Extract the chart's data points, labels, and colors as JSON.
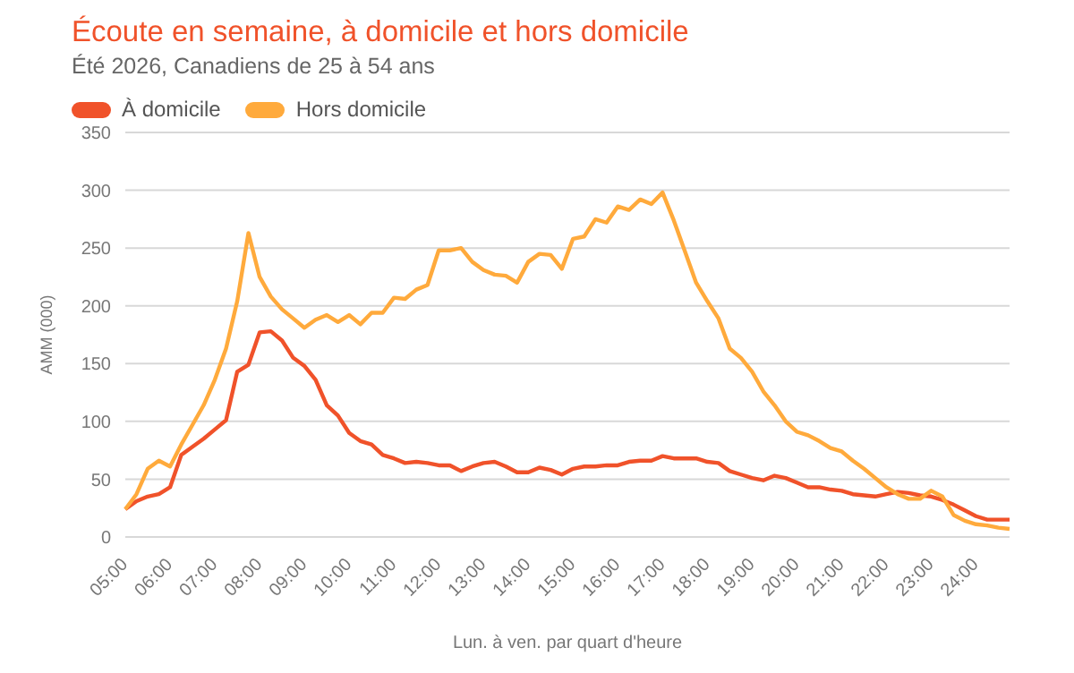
{
  "chart_data": {
    "type": "line",
    "title": "Écoute en semaine, à domicile et hors domicile",
    "subtitle": "Été 2026, Canadiens de 25 à 54 ans",
    "xlabel": "Lun. à ven. par quart d'heure",
    "ylabel": "AMM (000)",
    "categories": [
      "05:00",
      null,
      null,
      null,
      "06:00",
      null,
      null,
      null,
      "07:00",
      null,
      null,
      null,
      "08:00",
      null,
      null,
      null,
      "09:00",
      null,
      null,
      null,
      "10:00",
      null,
      null,
      null,
      "11:00",
      null,
      null,
      null,
      "12:00",
      null,
      null,
      null,
      "13:00",
      null,
      null,
      null,
      "14:00",
      null,
      null,
      null,
      "15:00",
      null,
      null,
      null,
      "16:00",
      null,
      null,
      null,
      "17:00",
      null,
      null,
      null,
      "18:00",
      null,
      null,
      null,
      "19:00",
      null,
      null,
      null,
      "20:00",
      null,
      null,
      null,
      "21:00",
      null,
      null,
      null,
      "22:00",
      null,
      null,
      null,
      "23:00",
      null,
      null,
      null,
      "24:00",
      null,
      null,
      null
    ],
    "series": [
      {
        "name": "À domicile",
        "color": "#f0522a",
        "values": [
          24,
          31,
          35,
          37,
          43,
          71,
          78,
          85,
          93,
          101,
          143,
          149,
          177,
          178,
          170,
          155,
          148,
          136,
          114,
          105,
          90,
          83,
          80,
          71,
          68,
          64,
          65,
          64,
          62,
          62,
          57,
          61,
          64,
          65,
          61,
          56,
          56,
          60,
          58,
          54,
          59,
          61,
          61,
          62,
          62,
          65,
          66,
          66,
          70,
          68,
          68,
          68,
          65,
          64,
          57,
          54,
          51,
          49,
          53,
          51,
          47,
          43,
          43,
          41,
          40,
          37,
          36,
          35,
          37,
          39,
          38,
          36,
          35,
          32,
          28,
          23,
          18,
          15,
          15,
          15
        ]
      },
      {
        "name": "Hors domicile",
        "color": "#ffaa3c",
        "values": [
          24,
          37,
          59,
          66,
          61,
          80,
          97,
          114,
          136,
          163,
          204,
          263,
          225,
          208,
          197,
          189,
          181,
          188,
          192,
          186,
          192,
          184,
          194,
          194,
          207,
          206,
          214,
          218,
          248,
          248,
          250,
          238,
          231,
          227,
          226,
          220,
          238,
          245,
          244,
          232,
          258,
          260,
          275,
          272,
          286,
          283,
          292,
          288,
          298,
          274,
          247,
          220,
          204,
          189,
          163,
          155,
          143,
          126,
          114,
          100,
          91,
          88,
          83,
          77,
          74,
          66,
          59,
          51,
          43,
          37,
          33,
          33,
          40,
          35,
          19,
          14,
          11,
          10,
          8,
          7
        ]
      }
    ],
    "ylim": [
      0,
      350
    ],
    "yticks": [
      0,
      50,
      100,
      150,
      200,
      250,
      300,
      350
    ],
    "grid": "y",
    "legend": "top left",
    "marker": "none",
    "line_style": "solid"
  }
}
